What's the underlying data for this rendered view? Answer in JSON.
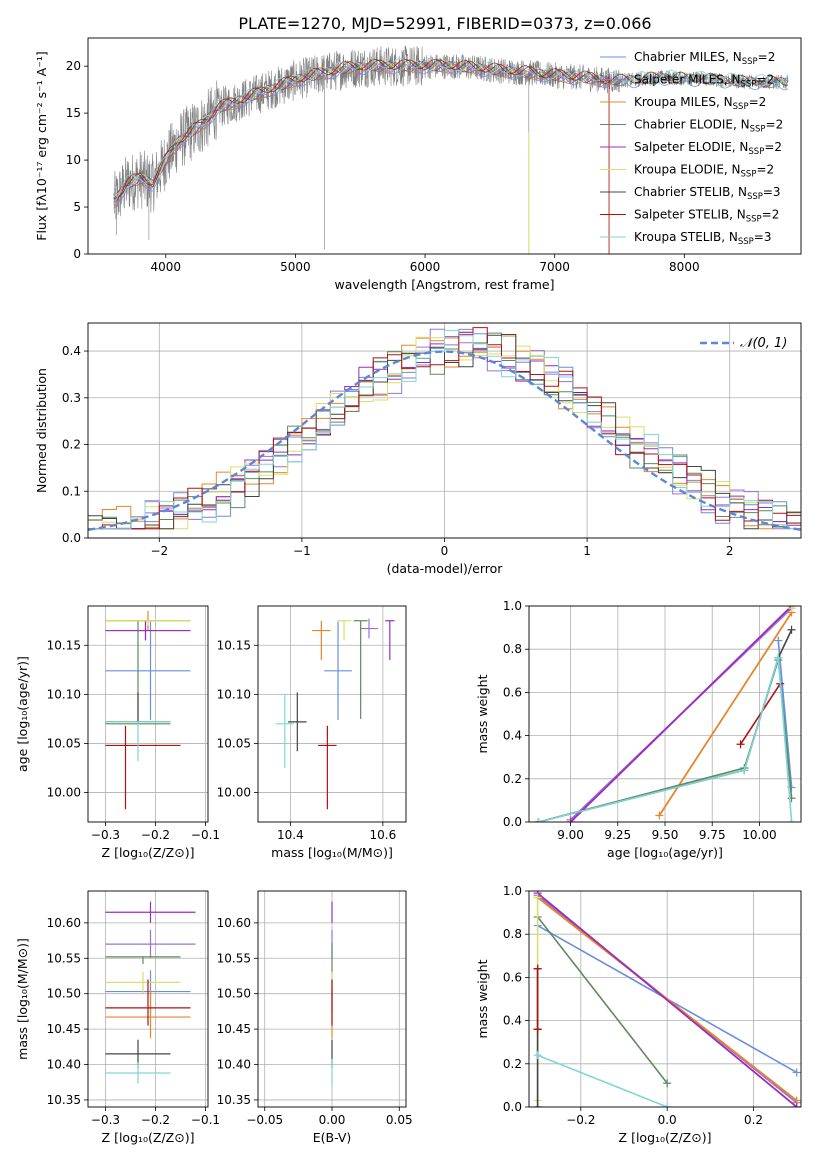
{
  "figure": {
    "title": "PLATE=1270, MJD=52991, FIBERID=0373, z=0.066"
  },
  "colors": {
    "data": "#808080",
    "norm": "#5b87d6",
    "models": [
      "#6a8fdc",
      "#9a72d6",
      "#e6852a",
      "#5e8a5e",
      "#9a2fbb",
      "#d6e06a",
      "#444444",
      "#b21010",
      "#7fd6d6"
    ]
  },
  "models": [
    {
      "name": "Chabrier MILES",
      "nssp": "2"
    },
    {
      "name": "Salpeter MILES",
      "nssp": "2"
    },
    {
      "name": "Kroupa MILES",
      "nssp": "2"
    },
    {
      "name": "Chabrier ELODIE",
      "nssp": "2"
    },
    {
      "name": "Salpeter ELODIE",
      "nssp": "2"
    },
    {
      "name": "Kroupa ELODIE",
      "nssp": "2"
    },
    {
      "name": "Chabrier STELIB",
      "nssp": "3"
    },
    {
      "name": "Salpeter STELIB",
      "nssp": "2"
    },
    {
      "name": "Kroupa STELIB",
      "nssp": "3"
    }
  ],
  "chart_data": [
    {
      "id": "spectrum",
      "type": "line",
      "xlabel": "wavelength [Angstrom, rest frame]",
      "ylabel": "Flux [fλ10⁻¹⁷ erg cm⁻² s⁻¹ A⁻¹]",
      "xlim": [
        3400,
        8900
      ],
      "ylim": [
        0,
        23
      ],
      "xticks": [
        4000,
        5000,
        6000,
        7000,
        8000
      ],
      "yticks": [
        0,
        5,
        10,
        15,
        20
      ],
      "grid": false,
      "legend": "right",
      "continuum_x": [
        3600,
        3700,
        3800,
        3900,
        4000,
        4100,
        4200,
        4300,
        4400,
        4600,
        4800,
        5000,
        5200,
        5400,
        5600,
        5800,
        6000,
        6200,
        6400,
        6600,
        6800,
        7000,
        7200,
        7400,
        7600,
        7800,
        8000,
        8200,
        8400,
        8600,
        8800
      ],
      "continuum_y": [
        5.5,
        7.5,
        8,
        7.5,
        10,
        12,
        13,
        14,
        15.5,
        16.5,
        17.5,
        18.5,
        19.2,
        19.8,
        20,
        20,
        20,
        20,
        19.8,
        19.5,
        19.3,
        19,
        18.8,
        18.5,
        18.5,
        18.8,
        18.7,
        18.6,
        18.4,
        18.3,
        18.3
      ]
    },
    {
      "id": "residuals",
      "type": "bar",
      "xlabel": "(data-model)/error",
      "ylabel": "Normed distribution",
      "xlim": [
        -2.5,
        2.5
      ],
      "ylim": [
        0,
        0.46
      ],
      "xticks": [
        -2,
        -1,
        0,
        1,
        2
      ],
      "yticks": [
        0.0,
        0.1,
        0.2,
        0.3,
        0.4
      ],
      "grid": true,
      "legend": "top-right",
      "legend_label": "𝒩(0, 1)",
      "bin_width": 0.1
    },
    {
      "id": "age-vs-Z",
      "type": "scatter",
      "xlabel": "Z [log₁₀(Z/Z⊙)]",
      "ylabel": "age  [log₁₀(age/yr)]",
      "xlim": [
        -0.335,
        -0.095
      ],
      "ylim": [
        9.97,
        10.19
      ],
      "xticks": [
        -0.3,
        -0.2,
        -0.1
      ],
      "yticks": [
        10.0,
        10.05,
        10.1,
        10.15
      ],
      "grid": true,
      "points": [
        {
          "x": -0.21,
          "y": 10.124,
          "xerr": [
            0.09,
            0.08
          ],
          "yerr": [
            0.05,
            0.05
          ]
        },
        {
          "x": -0.22,
          "y": 10.165,
          "xerr": [
            0.08,
            0.09
          ],
          "yerr": [
            0.01,
            0.01
          ]
        },
        {
          "x": -0.215,
          "y": 10.175,
          "xerr": [
            0.085,
            0.085
          ],
          "yerr": [
            0.01,
            0.01
          ]
        },
        {
          "x": -0.235,
          "y": 10.07,
          "xerr": [
            0.065,
            0.065
          ],
          "yerr": [
            0.0,
            0.105
          ]
        },
        {
          "x": -0.22,
          "y": 10.165,
          "xerr": [
            0.08,
            0.09
          ],
          "yerr": [
            0.01,
            0.01
          ]
        },
        {
          "x": -0.215,
          "y": 10.175,
          "xerr": [
            0.085,
            0.085
          ],
          "yerr": [
            0.005,
            0.0
          ]
        },
        {
          "x": -0.235,
          "y": 10.072,
          "xerr": [
            0.065,
            0.065
          ],
          "yerr": [
            0.002,
            0.03
          ]
        },
        {
          "x": -0.26,
          "y": 10.048,
          "xerr": [
            0.04,
            0.11
          ],
          "yerr": [
            0.065,
            0.02
          ]
        },
        {
          "x": -0.235,
          "y": 10.072,
          "xerr": [
            0.065,
            0.065
          ],
          "yerr": [
            0.04,
            0.0
          ]
        }
      ]
    },
    {
      "id": "age-vs-mass",
      "type": "scatter",
      "xlabel": "mass [log₁₀(M/M⊙)]",
      "ylabel": "",
      "xlim": [
        10.33,
        10.65
      ],
      "ylim": [
        9.97,
        10.19
      ],
      "xticks": [
        10.4,
        10.6
      ],
      "yticks": [
        10.0,
        10.05,
        10.1,
        10.15
      ],
      "grid": true,
      "points": [
        {
          "x": 10.503,
          "y": 10.124,
          "xerr": [
            0.03,
            0.03
          ],
          "yerr": [
            0.05,
            0.05
          ]
        },
        {
          "x": 10.57,
          "y": 10.167,
          "xerr": [
            0.02,
            0.02
          ],
          "yerr": [
            0.01,
            0.01
          ]
        },
        {
          "x": 10.467,
          "y": 10.165,
          "xerr": [
            0.02,
            0.02
          ],
          "yerr": [
            0.03,
            0.01
          ]
        },
        {
          "x": 10.552,
          "y": 10.175,
          "xerr": [
            0.015,
            0.015
          ],
          "yerr": [
            0.1,
            0.0
          ]
        },
        {
          "x": 10.615,
          "y": 10.175,
          "xerr": [
            0.01,
            0.01
          ],
          "yerr": [
            0.04,
            0.0
          ]
        },
        {
          "x": 10.516,
          "y": 10.175,
          "xerr": [
            0.015,
            0.015
          ],
          "yerr": [
            0.02,
            0.0
          ]
        },
        {
          "x": 10.415,
          "y": 10.072,
          "xerr": [
            0.02,
            0.02
          ],
          "yerr": [
            0.03,
            0.03
          ]
        },
        {
          "x": 10.48,
          "y": 10.048,
          "xerr": [
            0.02,
            0.02
          ],
          "yerr": [
            0.065,
            0.02
          ]
        },
        {
          "x": 10.388,
          "y": 10.07,
          "xerr": [
            0.02,
            0.02
          ],
          "yerr": [
            0.045,
            0.03
          ]
        }
      ]
    },
    {
      "id": "mass-weight-vs-age",
      "type": "line",
      "xlabel": "age  [log₁₀(age/yr)]",
      "ylabel": "mass weight",
      "xlim": [
        8.78,
        10.22
      ],
      "ylim": [
        0,
        1
      ],
      "xticks": [
        9.0,
        9.25,
        9.5,
        9.75,
        10.0
      ],
      "yticks": [
        0.0,
        0.2,
        0.4,
        0.6,
        0.8,
        1.0
      ],
      "grid": true,
      "series": [
        {
          "x": [
            10.1,
            10.17
          ],
          "y": [
            0.84,
            0.16
          ]
        },
        {
          "x": [
            9.0,
            10.17
          ],
          "y": [
            0.01,
            0.99
          ]
        },
        {
          "x": [
            9.47,
            10.17
          ],
          "y": [
            0.03,
            0.97
          ]
        },
        {
          "x": [
            8.83,
            9.92,
            10.1,
            10.17
          ],
          "y": [
            0.0,
            0.25,
            0.75,
            0.11
          ]
        },
        {
          "x": [
            9.0,
            10.17
          ],
          "y": [
            0.0,
            1.0
          ]
        },
        {
          "x": [
            10.17
          ],
          "y": [
            0.99
          ]
        },
        {
          "x": [
            8.83,
            9.92,
            10.1,
            10.17
          ],
          "y": [
            0.0,
            0.24,
            0.76,
            0.89
          ]
        },
        {
          "x": [
            9.9,
            10.11
          ],
          "y": [
            0.36,
            0.64
          ]
        },
        {
          "x": [
            8.83,
            9.92,
            10.1,
            10.17
          ],
          "y": [
            0.0,
            0.24,
            0.76,
            0.0
          ]
        }
      ]
    },
    {
      "id": "mass-vs-Z",
      "type": "scatter",
      "xlabel": "Z [log₁₀(Z/Z⊙)]",
      "ylabel": "mass [log₁₀(M/M⊙)]",
      "xlim": [
        -0.335,
        -0.095
      ],
      "ylim": [
        10.34,
        10.645
      ],
      "xticks": [
        -0.3,
        -0.2,
        -0.1
      ],
      "yticks": [
        10.35,
        10.4,
        10.45,
        10.5,
        10.55,
        10.6
      ],
      "grid": true,
      "points": [
        {
          "x": -0.21,
          "y": 10.503,
          "xerr": [
            0.09,
            0.08
          ],
          "yerr": [
            0.03,
            0.03
          ]
        },
        {
          "x": -0.21,
          "y": 10.57,
          "xerr": [
            0.09,
            0.09
          ],
          "yerr": [
            0.02,
            0.02
          ]
        },
        {
          "x": -0.21,
          "y": 10.467,
          "xerr": [
            0.09,
            0.08
          ],
          "yerr": [
            0.03,
            0.04
          ]
        },
        {
          "x": -0.225,
          "y": 10.552,
          "xerr": [
            0.075,
            0.075
          ],
          "yerr": [
            0.01,
            0.0
          ]
        },
        {
          "x": -0.21,
          "y": 10.615,
          "xerr": [
            0.09,
            0.09
          ],
          "yerr": [
            0.015,
            0.015
          ]
        },
        {
          "x": -0.225,
          "y": 10.516,
          "xerr": [
            0.075,
            0.075
          ],
          "yerr": [
            0.015,
            0.015
          ]
        },
        {
          "x": -0.235,
          "y": 10.415,
          "xerr": [
            0.065,
            0.065
          ],
          "yerr": [
            0.02,
            0.02
          ]
        },
        {
          "x": -0.215,
          "y": 10.48,
          "xerr": [
            0.085,
            0.085
          ],
          "yerr": [
            0.025,
            0.04
          ]
        },
        {
          "x": -0.235,
          "y": 10.388,
          "xerr": [
            0.065,
            0.065
          ],
          "yerr": [
            0.015,
            0.015
          ]
        }
      ]
    },
    {
      "id": "mass-vs-EBV",
      "type": "scatter",
      "xlabel": "E(B-V)",
      "ylabel": "",
      "xlim": [
        -0.055,
        0.055
      ],
      "ylim": [
        10.34,
        10.645
      ],
      "xticks": [
        -0.05,
        0.0,
        0.05
      ],
      "yticks": [
        10.35,
        10.4,
        10.45,
        10.5,
        10.55,
        10.6
      ],
      "grid": true,
      "points": [
        {
          "x": 0.0,
          "y": 10.503,
          "xerr": [
            0,
            0
          ],
          "yerr": [
            0.03,
            0.03
          ]
        },
        {
          "x": 0.0,
          "y": 10.57,
          "xerr": [
            0,
            0
          ],
          "yerr": [
            0.02,
            0.02
          ]
        },
        {
          "x": 0.0,
          "y": 10.467,
          "xerr": [
            0,
            0
          ],
          "yerr": [
            0.03,
            0.04
          ]
        },
        {
          "x": 0.0,
          "y": 10.552,
          "xerr": [
            0,
            0
          ],
          "yerr": [
            0.02,
            0.02
          ]
        },
        {
          "x": 0.0,
          "y": 10.615,
          "xerr": [
            0,
            0
          ],
          "yerr": [
            0.015,
            0.015
          ]
        },
        {
          "x": 0.0,
          "y": 10.516,
          "xerr": [
            0,
            0
          ],
          "yerr": [
            0.015,
            0.015
          ]
        },
        {
          "x": 0.0,
          "y": 10.415,
          "xerr": [
            0,
            0
          ],
          "yerr": [
            0.02,
            0.02
          ]
        },
        {
          "x": 0.0,
          "y": 10.48,
          "xerr": [
            0,
            0
          ],
          "yerr": [
            0.025,
            0.04
          ]
        },
        {
          "x": 0.0,
          "y": 10.388,
          "xerr": [
            0,
            0
          ],
          "yerr": [
            0.02,
            0.02
          ]
        }
      ]
    },
    {
      "id": "mass-weight-vs-Z",
      "type": "line",
      "xlabel": "Z [log₁₀(Z/Z⊙)]",
      "ylabel": "mass weight",
      "xlim": [
        -0.32,
        0.31
      ],
      "ylim": [
        0,
        1
      ],
      "xticks": [
        -0.2,
        0.0,
        0.2
      ],
      "yticks": [
        0.0,
        0.2,
        0.4,
        0.6,
        0.8,
        1.0
      ],
      "grid": true,
      "series": [
        {
          "x": [
            -0.3,
            0.3
          ],
          "y": [
            0.84,
            0.16
          ]
        },
        {
          "x": [
            -0.3,
            0.3
          ],
          "y": [
            0.98,
            0.02
          ]
        },
        {
          "x": [
            -0.3,
            0.3
          ],
          "y": [
            0.97,
            0.03
          ]
        },
        {
          "x": [
            -0.3,
            0.0
          ],
          "y": [
            0.88,
            0.11
          ]
        },
        {
          "x": [
            -0.3,
            0.3
          ],
          "y": [
            0.99,
            0.0
          ]
        },
        {
          "x": [
            -0.3,
            -0.3
          ],
          "y": [
            0.03,
            0.97
          ]
        },
        {
          "x": [
            -0.3,
            -0.3,
            -0.3
          ],
          "y": [
            0.36,
            0.64,
            0.0
          ]
        },
        {
          "x": [
            -0.3,
            -0.3
          ],
          "y": [
            0.36,
            0.64
          ]
        },
        {
          "x": [
            -0.3,
            0.0
          ],
          "y": [
            0.24,
            0.0
          ]
        }
      ]
    }
  ]
}
